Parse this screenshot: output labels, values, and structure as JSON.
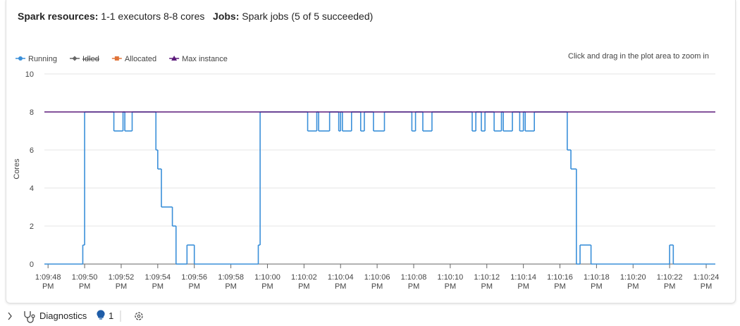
{
  "header": {
    "resources_label": "Spark resources:",
    "resources_value": "1-1 executors 8-8 cores",
    "jobs_label": "Jobs:",
    "jobs_value": "Spark jobs (5 of 5 succeeded)"
  },
  "chart_data": {
    "type": "line",
    "step": true,
    "hint": "Click and drag in the plot area to zoom in",
    "y_label": "Cores",
    "xlim": [
      "1:09:47.8 PM",
      "1:10:24.5 PM"
    ],
    "xticks": [
      "1:09:48 PM",
      "1:09:50 PM",
      "1:09:52 PM",
      "1:09:54 PM",
      "1:09:56 PM",
      "1:09:58 PM",
      "1:10:00 PM",
      "1:10:02 PM",
      "1:10:04 PM",
      "1:10:06 PM",
      "1:10:08 PM",
      "1:10:10 PM",
      "1:10:12 PM",
      "1:10:14 PM",
      "1:10:16 PM",
      "1:10:18 PM",
      "1:10:20 PM",
      "1:10:22 PM",
      "1:10:24 PM"
    ],
    "ylim": [
      0,
      10
    ],
    "yticks": [
      0,
      2,
      4,
      6,
      8,
      10
    ],
    "grid": true,
    "series": [
      {
        "name": "Running",
        "color": "#3a8fd9",
        "marker": "circle",
        "hidden": false,
        "x": [
          "1:09:47.8 PM",
          "1:09:49.9 PM",
          "1:09:50.0 PM",
          "1:09:51.6 PM",
          "1:09:52.1 PM",
          "1:09:52.2 PM",
          "1:09:52.6 PM",
          "1:09:53.9 PM",
          "1:09:54.0 PM",
          "1:09:54.2 PM",
          "1:09:54.8 PM",
          "1:09:55.0 PM",
          "1:09:55.6 PM",
          "1:09:56.0 PM",
          "1:09:59.5 PM",
          "1:09:59.6 PM",
          "1:10:02.2 PM",
          "1:10:02.7 PM",
          "1:10:02.8 PM",
          "1:10:03.4 PM",
          "1:10:03.9 PM",
          "1:10:04.0 PM",
          "1:10:04.1 PM",
          "1:10:04.6 PM",
          "1:10:05.1 PM",
          "1:10:05.3 PM",
          "1:10:05.8 PM",
          "1:10:06.4 PM",
          "1:10:07.9 PM",
          "1:10:08.1 PM",
          "1:10:08.5 PM",
          "1:10:09.0 PM",
          "1:10:11.2 PM",
          "1:10:11.4 PM",
          "1:10:11.7 PM",
          "1:10:11.9 PM",
          "1:10:12.4 PM",
          "1:10:12.8 PM",
          "1:10:12.9 PM",
          "1:10:13.4 PM",
          "1:10:13.8 PM",
          "1:10:14.0 PM",
          "1:10:14.1 PM",
          "1:10:14.6 PM",
          "1:10:16.4 PM",
          "1:10:16.6 PM",
          "1:10:16.9 PM",
          "1:10:17.1 PM",
          "1:10:17.7 PM",
          "1:10:22.0 PM",
          "1:10:22.2 PM",
          "1:10:24.5 PM"
        ],
        "values": [
          0,
          1,
          8,
          7,
          8,
          7,
          8,
          6,
          5,
          3,
          2,
          0,
          1,
          0,
          1,
          8,
          7,
          8,
          7,
          8,
          7,
          8,
          7,
          8,
          7,
          8,
          7,
          8,
          7,
          8,
          7,
          8,
          7,
          8,
          7,
          8,
          7,
          8,
          7,
          8,
          7,
          8,
          7,
          8,
          6,
          5,
          0,
          1,
          0,
          1,
          0,
          0
        ]
      },
      {
        "name": "Idled",
        "color": "#666666",
        "marker": "diamond",
        "hidden": true,
        "x": [],
        "values": []
      },
      {
        "name": "Allocated",
        "color": "#e0743a",
        "marker": "square",
        "hidden": false,
        "x": [],
        "values": []
      },
      {
        "name": "Max instance",
        "color": "#5b1a7a",
        "marker": "triangle",
        "hidden": false,
        "x": [
          "1:09:47.8 PM",
          "1:10:24.5 PM"
        ],
        "values": [
          8,
          8
        ]
      }
    ]
  },
  "footer": {
    "diagnostics": "Diagnostics",
    "count": "1"
  }
}
